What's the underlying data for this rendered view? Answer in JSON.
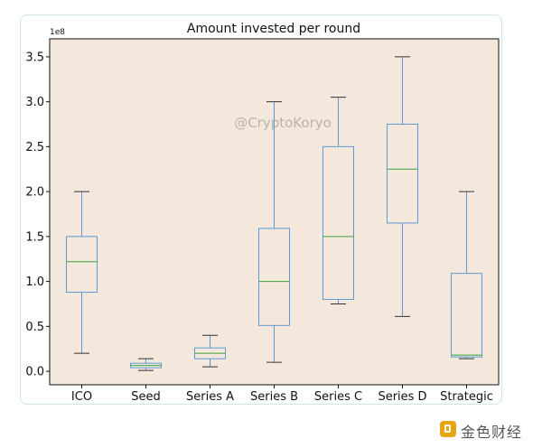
{
  "chart_data": {
    "type": "box",
    "title": "Amount invested per round",
    "xlabel": "",
    "ylabel": "",
    "y_exponent_label": "1e8",
    "ylim": [
      -0.15,
      3.7
    ],
    "yticks": [
      0.0,
      0.5,
      1.0,
      1.5,
      2.0,
      2.5,
      3.0,
      3.5
    ],
    "ytick_labels": [
      "0.0",
      "0.5",
      "1.0",
      "1.5",
      "2.0",
      "2.5",
      "3.0",
      "3.5"
    ],
    "grid": false,
    "categories": [
      "ICO",
      "Seed",
      "Series A",
      "Series B",
      "Series C",
      "Series D",
      "Strategic"
    ],
    "boxes": [
      {
        "category": "ICO",
        "whisker_low": 0.2,
        "q1": 0.88,
        "median": 1.22,
        "q3": 1.5,
        "whisker_high": 2.0
      },
      {
        "category": "Seed",
        "whisker_low": 0.01,
        "q1": 0.04,
        "median": 0.065,
        "q3": 0.09,
        "whisker_high": 0.14
      },
      {
        "category": "Series A",
        "whisker_low": 0.05,
        "q1": 0.14,
        "median": 0.2,
        "q3": 0.26,
        "whisker_high": 0.4
      },
      {
        "category": "Series B",
        "whisker_low": 0.1,
        "q1": 0.51,
        "median": 1.0,
        "q3": 1.59,
        "whisker_high": 3.0
      },
      {
        "category": "Series C",
        "whisker_low": 0.75,
        "q1": 0.8,
        "median": 1.5,
        "q3": 2.5,
        "whisker_high": 3.05
      },
      {
        "category": "Series D",
        "whisker_low": 0.61,
        "q1": 1.65,
        "median": 2.25,
        "q3": 2.75,
        "whisker_high": 3.5
      },
      {
        "category": "Strategic",
        "whisker_low": 0.14,
        "q1": 0.16,
        "median": 0.18,
        "q3": 1.09,
        "whisker_high": 2.0
      }
    ],
    "colors": {
      "plot_background": "#f3e8db",
      "box": "#5b9bd5",
      "median": "#3aa33a",
      "whisker": "#333333"
    }
  },
  "watermark": "@CryptoKoryo",
  "footer": {
    "brand_text": "金色财经"
  }
}
